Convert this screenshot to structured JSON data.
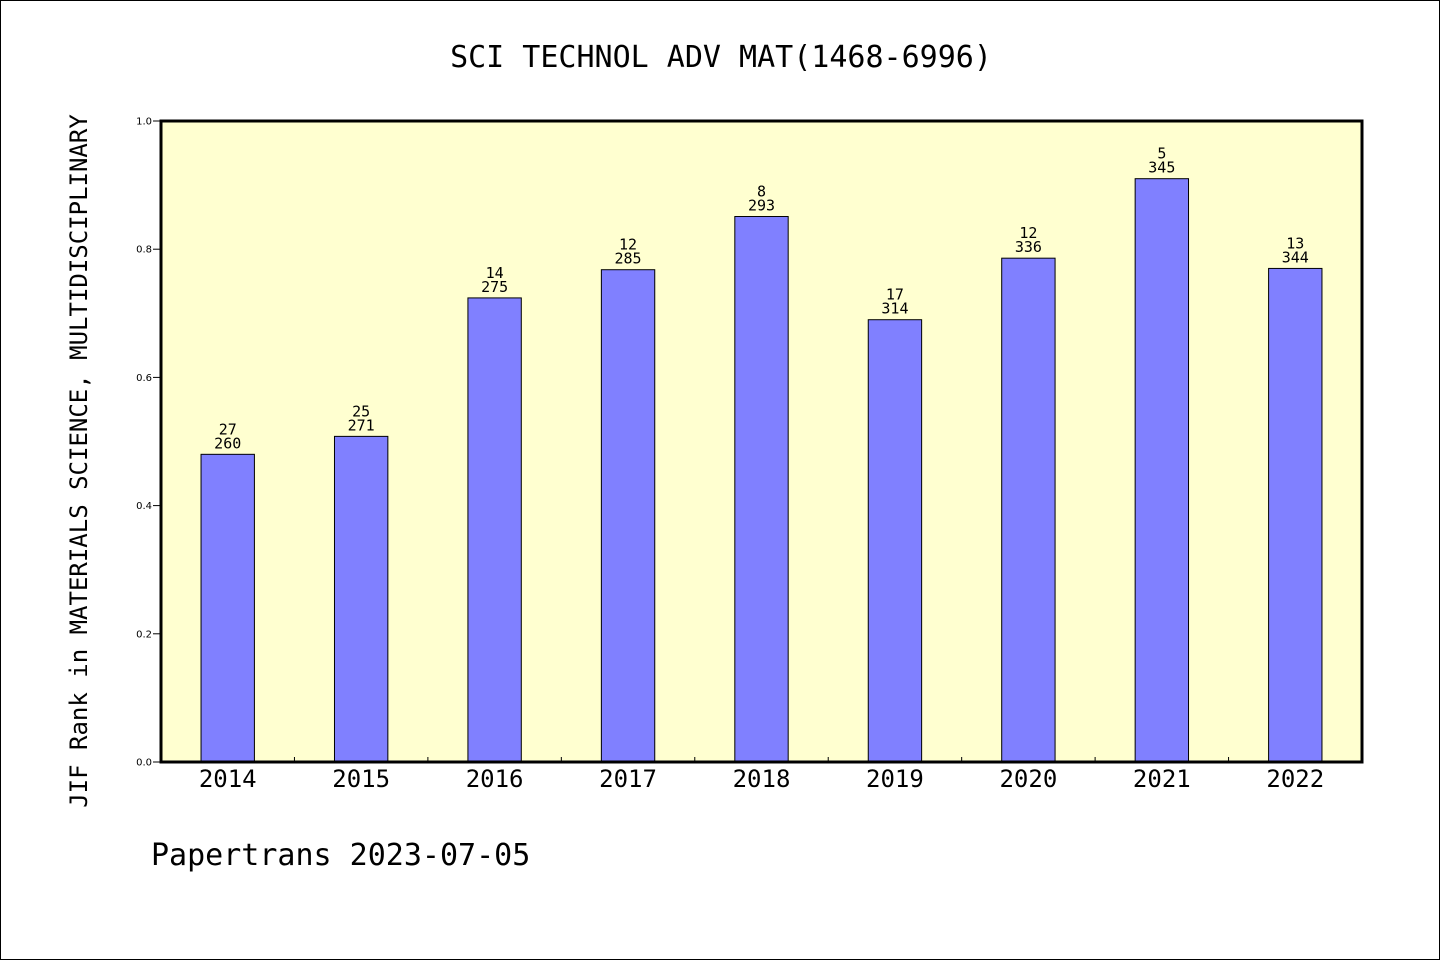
{
  "footer": "Papertrans 2023-07-05",
  "chart_data": {
    "type": "bar",
    "title": "SCI TECHNOL ADV MAT(1468-6996)",
    "xlabel": "",
    "ylabel": "JIF Rank in MATERIALS SCIENCE, MULTIDISCIPLINARY",
    "ylim": [
      0,
      1.0
    ],
    "yticks": [
      "0.0",
      "0.2",
      "0.4",
      "0.6",
      "0.8",
      "1.0"
    ],
    "categories": [
      "2014",
      "2015",
      "2016",
      "2017",
      "2018",
      "2019",
      "2020",
      "2021",
      "2022"
    ],
    "values": [
      0.48,
      0.508,
      0.724,
      0.768,
      0.851,
      0.69,
      0.786,
      0.91,
      0.77
    ],
    "rank": [
      "27",
      "25",
      "14",
      "12",
      "8",
      "17",
      "12",
      "5",
      "13"
    ],
    "total": [
      "260",
      "271",
      "275",
      "285",
      "293",
      "314",
      "336",
      "345",
      "344"
    ],
    "grid": false,
    "colors": {
      "plot_background": "#ffffd0",
      "bar_fill": "#8080ff",
      "bar_stroke": "#000000"
    }
  }
}
